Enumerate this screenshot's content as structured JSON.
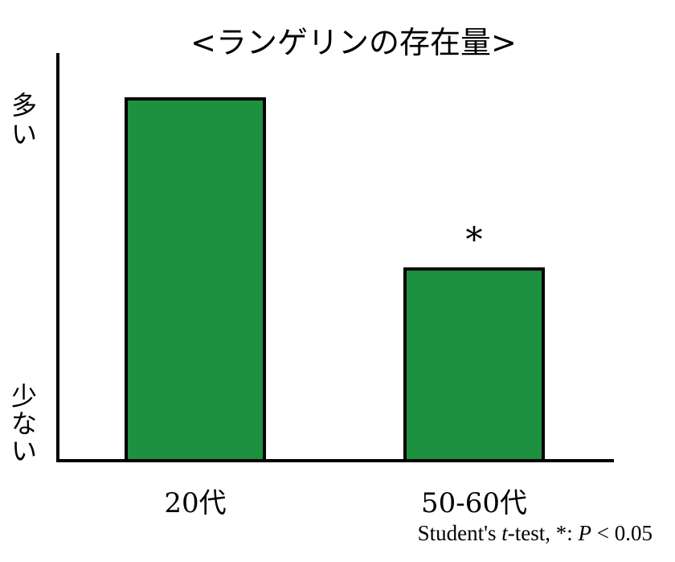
{
  "chart_data": {
    "type": "bar",
    "title": "<ランゲリンの存在量>",
    "categories": [
      "20代",
      "50-60代"
    ],
    "values": [
      100,
      53
    ],
    "ylim": [
      0,
      100
    ],
    "y_axis_labels": {
      "high": "多い",
      "low": "少ない"
    },
    "annotations": [
      {
        "category": "50-60代",
        "text": "*"
      }
    ],
    "bar_color": "#1e9140",
    "grid": false,
    "legend": "none"
  },
  "footnote": {
    "prefix": "Student's ",
    "italic_t": "t",
    "middle": "-test, *: ",
    "italic_p": "P",
    "suffix": " < 0.05"
  }
}
